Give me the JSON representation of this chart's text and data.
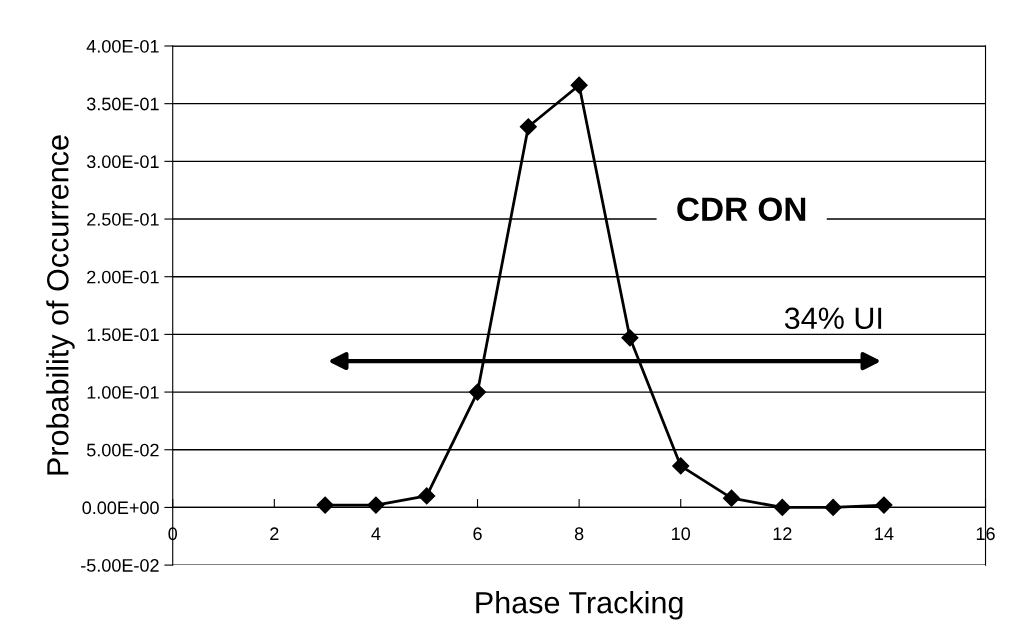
{
  "chart_data": {
    "type": "line",
    "xlabel": "Phase Tracking",
    "ylabel": "Probability of Occurrence",
    "x": [
      3,
      4,
      5,
      6,
      7,
      8,
      9,
      10,
      11,
      12,
      13,
      14
    ],
    "series": [
      {
        "color": "#000000",
        "values": [
          0.002,
          0.002,
          0.01,
          0.1,
          0.33,
          0.366,
          0.147,
          0.036,
          0.008,
          0.0,
          0.0,
          0.002
        ]
      }
    ],
    "marker": "diamond",
    "line_style": "solid",
    "grid": "y",
    "legend": false,
    "xlim": [
      0,
      16
    ],
    "xticks": [
      0,
      2,
      4,
      6,
      8,
      10,
      12,
      14,
      16
    ],
    "ylim": [
      -0.05,
      0.4
    ],
    "yticks": [
      {
        "value": -0.05,
        "label": "-5.00E-02"
      },
      {
        "value": 0,
        "label": "0.00E+00"
      },
      {
        "value": 0.05,
        "label": "5.00E-02"
      },
      {
        "value": 0.1,
        "label": "1.00E-01"
      },
      {
        "value": 0.15,
        "label": "1.50E-01"
      },
      {
        "value": 0.2,
        "label": "2.00E-01"
      },
      {
        "value": 0.25,
        "label": "2.50E-01"
      },
      {
        "value": 0.3,
        "label": "3.00E-01"
      },
      {
        "value": 0.35,
        "label": "3.50E-01"
      },
      {
        "value": 0.4,
        "label": "4.00E-01"
      }
    ],
    "annotations": [
      "CDR ON",
      "34% UI"
    ]
  }
}
